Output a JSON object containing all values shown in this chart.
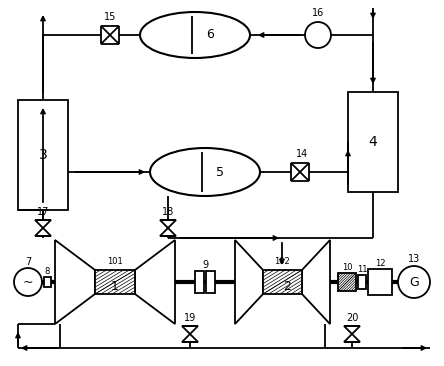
{
  "bg_color": "#ffffff",
  "line_color": "#000000",
  "fig_width": 4.44,
  "fig_height": 3.66,
  "dpi": 100
}
